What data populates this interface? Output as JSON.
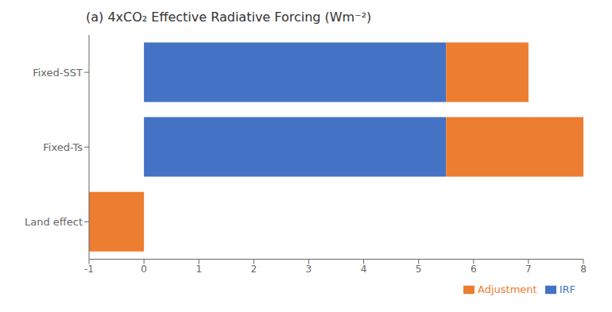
{
  "chart_data": {
    "type": "bar",
    "orientation": "horizontal",
    "stacked": true,
    "title": "(a) 4xCO₂ Effective Radiative Forcing (Wm⁻²)",
    "categories": [
      "Fixed-SST",
      "Fixed-Ts",
      "Land effect"
    ],
    "series": [
      {
        "name": "IRF",
        "color": "#4472C4",
        "values": [
          5.5,
          5.5,
          0.0
        ]
      },
      {
        "name": "Adjustment",
        "color": "#ED7D31",
        "values": [
          1.5,
          2.5,
          -1.0
        ]
      }
    ],
    "xlim": [
      -1,
      8
    ],
    "xticks": [
      -1,
      0,
      1,
      2,
      3,
      4,
      5,
      6,
      7,
      8
    ],
    "legend": "lower right",
    "grid": false
  }
}
